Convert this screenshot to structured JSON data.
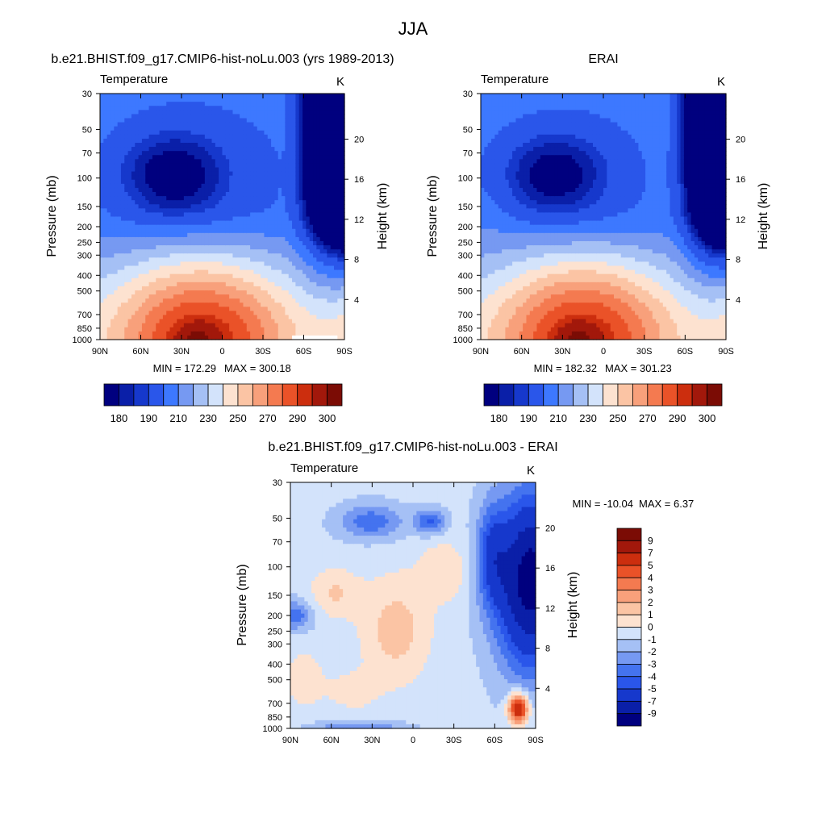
{
  "figure": {
    "title": "JJA"
  },
  "palette": {
    "absolute": [
      "#00007f",
      "#0a1fa8",
      "#1638cc",
      "#2a56ea",
      "#3d78ff",
      "#7699f2",
      "#a5c0f5",
      "#d3e3fb",
      "#fde2d0",
      "#fbc4a4",
      "#f8a07b",
      "#f47a50",
      "#ea5228",
      "#cc2e0e",
      "#a2180b",
      "#7b0c05"
    ],
    "difference": [
      "#00007f",
      "#0a1fa8",
      "#1638cc",
      "#2a56ea",
      "#4473ef",
      "#7699f2",
      "#a5c0f5",
      "#d3e3fb",
      "#fde2d0",
      "#fbc4a4",
      "#f8a07b",
      "#f47a50",
      "#ea5228",
      "#cc2e0e",
      "#a2180b",
      "#7b0c05"
    ]
  },
  "chart_data": [
    {
      "type": "heatmap",
      "title": "b.e21.BHIST.f09_g17.CMIP6-hist-noLu.003 (yrs 1989-2013)",
      "left_label": "Temperature",
      "right_label": "K",
      "xlabel": "",
      "ylabel": "Pressure (mb)",
      "y2label": "Height (km)",
      "xticks": [
        "90N",
        "60N",
        "30N",
        "0",
        "30S",
        "60S",
        "90S"
      ],
      "yticks": [
        "30",
        "50",
        "70",
        "100",
        "150",
        "200",
        "250",
        "300",
        "400",
        "500",
        "700",
        "850",
        "1000"
      ],
      "y2ticks": [
        "20",
        "16",
        "12",
        "8",
        "4"
      ],
      "ylim": [
        1000,
        30
      ],
      "min_label": "MIN = 172.29",
      "max_label": "MAX = 300.18",
      "stats": {
        "min": 172.29,
        "max": 300.18
      },
      "colorbar_labels": [
        "180",
        "190",
        "210",
        "230",
        "250",
        "270",
        "290",
        "300"
      ],
      "field": "model"
    },
    {
      "type": "heatmap",
      "title": "ERAI",
      "left_label": "Temperature",
      "right_label": "K",
      "xlabel": "",
      "ylabel": "Pressure (mb)",
      "y2label": "Height (km)",
      "xticks": [
        "90N",
        "60N",
        "30N",
        "0",
        "30S",
        "60S",
        "90S"
      ],
      "yticks": [
        "30",
        "50",
        "70",
        "100",
        "150",
        "200",
        "250",
        "300",
        "400",
        "500",
        "700",
        "850",
        "1000"
      ],
      "y2ticks": [
        "20",
        "16",
        "12",
        "8",
        "4"
      ],
      "ylim": [
        1000,
        30
      ],
      "min_label": "MIN = 182.32",
      "max_label": "MAX = 301.23",
      "stats": {
        "min": 182.32,
        "max": 301.23
      },
      "colorbar_labels": [
        "180",
        "190",
        "210",
        "230",
        "250",
        "270",
        "290",
        "300"
      ],
      "field": "erai"
    },
    {
      "type": "heatmap",
      "title": "b.e21.BHIST.f09_g17.CMIP6-hist-noLu.003 - ERAI",
      "left_label": "Temperature",
      "right_label": "K",
      "xlabel": "",
      "ylabel": "Pressure (mb)",
      "y2label": "Height (km)",
      "xticks": [
        "90N",
        "60N",
        "30N",
        "0",
        "30S",
        "60S",
        "90S"
      ],
      "yticks": [
        "30",
        "50",
        "70",
        "100",
        "150",
        "200",
        "250",
        "300",
        "400",
        "500",
        "700",
        "850",
        "1000"
      ],
      "y2ticks": [
        "20",
        "16",
        "12",
        "8",
        "4"
      ],
      "ylim": [
        1000,
        30
      ],
      "min_label": "MIN = -10.04",
      "max_label": "MAX =   6.37",
      "stats": {
        "min": -10.04,
        "max": 6.37
      },
      "colorbar_labels": [
        "9",
        "7",
        "5",
        "4",
        "3",
        "2",
        "1",
        "0",
        "-1",
        "-2",
        "-3",
        "-4",
        "-5",
        "-7",
        "-9"
      ],
      "field": "diff"
    }
  ]
}
